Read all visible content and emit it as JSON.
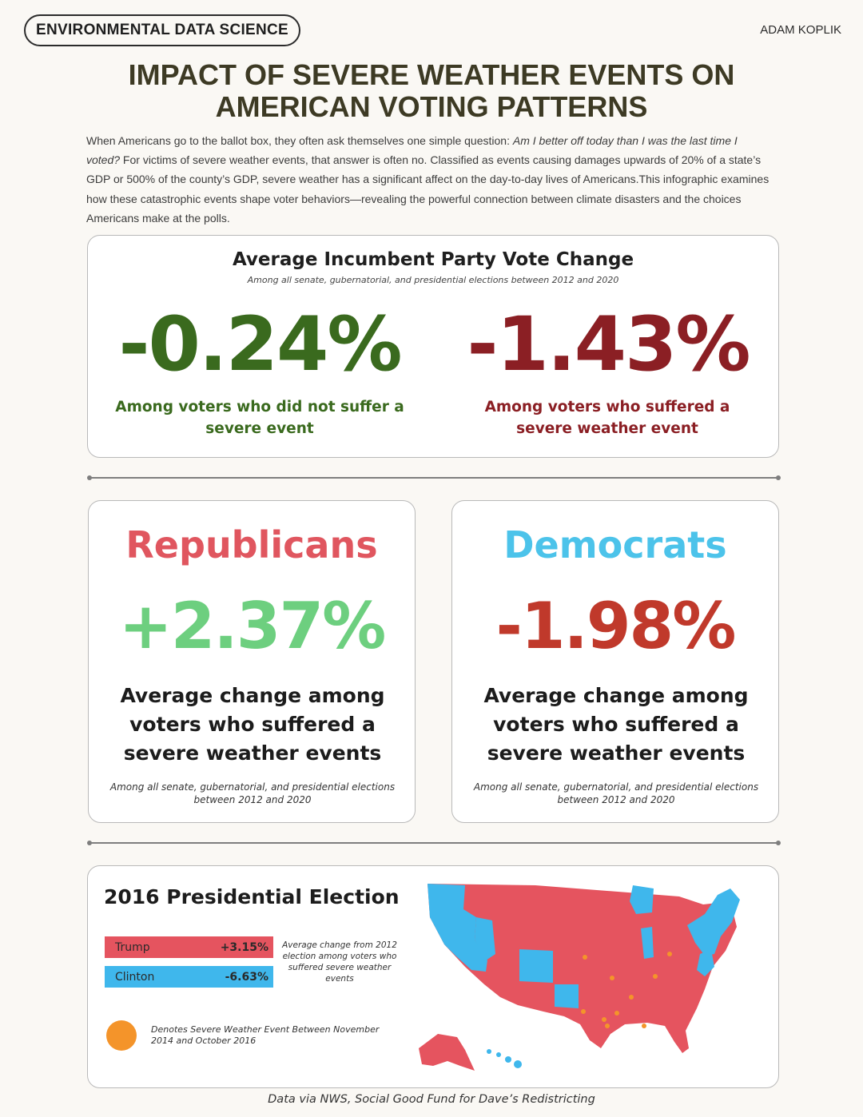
{
  "header": {
    "badge": "ENVIRONMENTAL DATA SCIENCE",
    "author": "ADAM KOPLIK",
    "title_line1": "IMPACT OF SEVERE WEATHER EVENTS ON",
    "title_line2": "AMERICAN VOTING PATTERNS"
  },
  "intro": {
    "p1": "When Americans go to the ballot box, they often ask themselves one simple question: ",
    "p1_em": "Am I better off today than I was the last time I voted?",
    "p2": " For victims of severe weather events, that answer is often no. Classified as events causing damages upwards of 20% of a state’s GDP or 500% of the county’s GDP, severe weather has a significant affect on the day-to-day lives of Americans.This infographic examines how these catastrophic events shape voter behaviors—revealing the powerful connection between climate disasters and the choices Americans make at the polls."
  },
  "incumbent": {
    "title": "Average Incumbent Party Vote Change",
    "subtitle": "Among all senate, gubernatorial, and presidential elections between 2012 and 2020",
    "no_event_value": "-0.24%",
    "no_event_caption": "Among voters who did not suffer a severe event",
    "event_value": "-1.43%",
    "event_caption": "Among voters who suffered a severe weather event"
  },
  "parties": {
    "republicans": {
      "name": "Republicans",
      "value": "+2.37%",
      "description": "Average change among voters who suffered a severe weather events",
      "note": "Among all senate, gubernatorial, and presidential elections between 2012 and 2020"
    },
    "democrats": {
      "name": "Democrats",
      "value": "-1.98%",
      "description": "Average change among voters who suffered a severe weather events",
      "note": "Among all senate, gubernatorial, and presidential elections between 2012 and 2020"
    }
  },
  "election2016": {
    "title": "2016 Presidential Election",
    "trump_label": "Trump",
    "trump_value": "+3.15%",
    "clinton_label": "Clinton",
    "clinton_value": "-6.63%",
    "bar_note": "Average change from 2012 election among voters who suffered severe weather events",
    "legend_note": "Denotes Severe Weather Event Between November 2014 and October 2016"
  },
  "colors": {
    "trump": "#e5545f",
    "clinton": "#3fb7ec",
    "severe_event": "#f4942a"
  },
  "footer": "Data via NWS, Social Good Fund for Dave’s Redistricting"
}
